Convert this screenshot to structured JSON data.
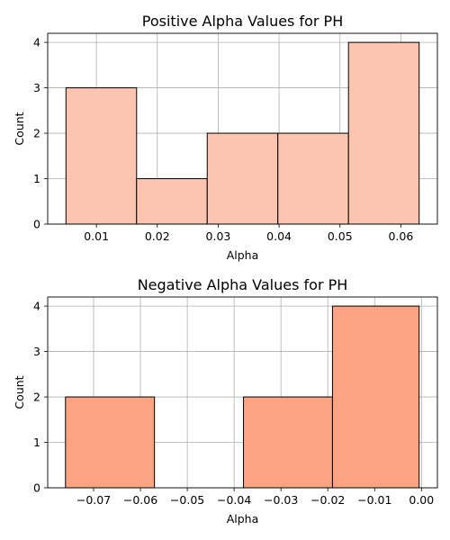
{
  "chart_data": [
    {
      "type": "bar",
      "title": "Positive Alpha Values for PH",
      "xlabel": "Alpha",
      "ylabel": "Count",
      "bar_color": "#fcc5af",
      "edge_color": "#000000",
      "grid": true,
      "xlim": [
        0.002,
        0.066
      ],
      "ylim": [
        0,
        4.2
      ],
      "xticks": [
        0.01,
        0.02,
        0.03,
        0.04,
        0.05,
        0.06
      ],
      "xtick_labels": [
        "0.01",
        "0.02",
        "0.03",
        "0.04",
        "0.05",
        "0.06"
      ],
      "yticks": [
        0,
        1,
        2,
        3,
        4
      ],
      "ytick_labels": [
        "0",
        "1",
        "2",
        "3",
        "4"
      ],
      "bins": [
        {
          "x0": 0.005,
          "x1": 0.0166,
          "count": 3
        },
        {
          "x0": 0.0166,
          "x1": 0.0282,
          "count": 1
        },
        {
          "x0": 0.0282,
          "x1": 0.0398,
          "count": 2
        },
        {
          "x0": 0.0398,
          "x1": 0.0514,
          "count": 2
        },
        {
          "x0": 0.0514,
          "x1": 0.063,
          "count": 4
        }
      ]
    },
    {
      "type": "bar",
      "title": "Negative Alpha Values for PH",
      "xlabel": "Alpha",
      "ylabel": "Count",
      "bar_color": "#fca482",
      "edge_color": "#000000",
      "grid": true,
      "xlim": [
        -0.0798,
        0.0034
      ],
      "ylim": [
        0,
        4.2
      ],
      "xticks": [
        -0.07,
        -0.06,
        -0.05,
        -0.04,
        -0.03,
        -0.02,
        -0.01,
        0.0
      ],
      "xtick_labels": [
        "−0.07",
        "−0.06",
        "−0.05",
        "−0.04",
        "−0.03",
        "−0.02",
        "−0.01",
        "0.00"
      ],
      "yticks": [
        0,
        1,
        2,
        3,
        4
      ],
      "ytick_labels": [
        "0",
        "1",
        "2",
        "3",
        "4"
      ],
      "bins": [
        {
          "x0": -0.076,
          "x1": -0.057,
          "count": 2
        },
        {
          "x0": -0.057,
          "x1": -0.038,
          "count": 0
        },
        {
          "x0": -0.038,
          "x1": -0.019,
          "count": 2
        },
        {
          "x0": -0.019,
          "x1": -0.0005,
          "count": 4
        }
      ]
    }
  ]
}
